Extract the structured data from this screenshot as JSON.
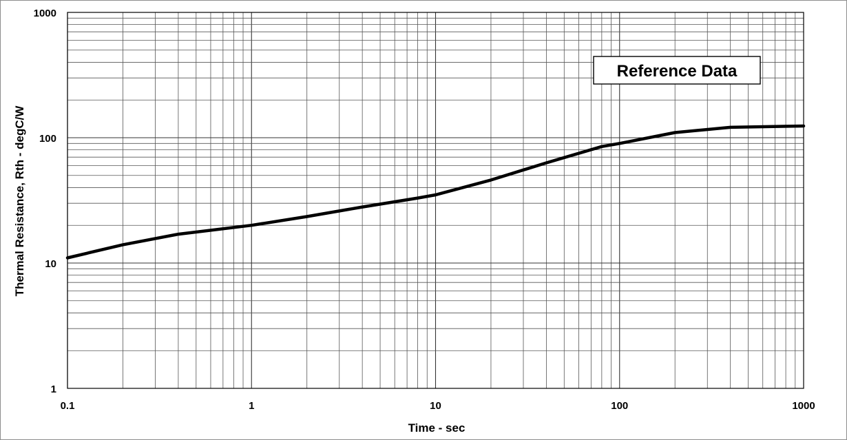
{
  "chart_data": {
    "type": "line",
    "title": "",
    "xlabel": "Time - sec",
    "ylabel": "Thermal Resistance, Rth - degC/W",
    "x_scale": "log",
    "y_scale": "log",
    "xlim": [
      0.1,
      1000
    ],
    "ylim": [
      1,
      1000
    ],
    "x_ticks": [
      "0.1",
      "1",
      "10",
      "100",
      "1000"
    ],
    "y_ticks": [
      "1",
      "10",
      "100",
      "1000"
    ],
    "grid": true,
    "legend": "none",
    "annotation": "Reference Data",
    "series": [
      {
        "color": "#000000",
        "x": [
          0.1,
          0.2,
          0.4,
          1,
          2,
          4,
          8,
          10,
          20,
          40,
          80,
          100,
          200,
          400,
          1000
        ],
        "y": [
          11,
          14,
          17,
          20,
          23.5,
          28,
          33,
          35,
          46,
          63,
          85,
          90,
          110,
          121,
          124
        ]
      }
    ]
  }
}
